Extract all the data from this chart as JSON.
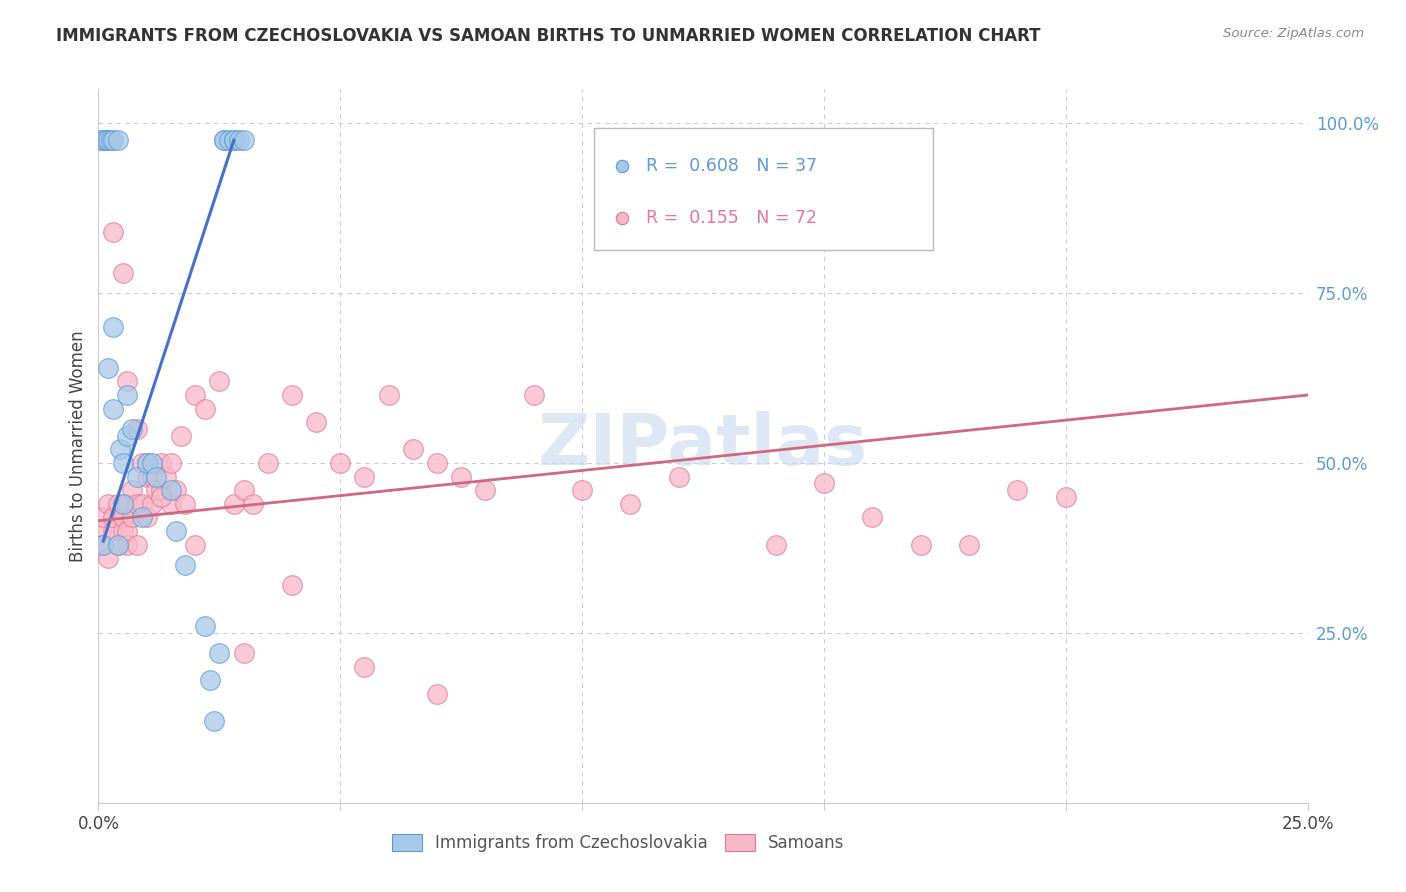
{
  "title": "IMMIGRANTS FROM CZECHOSLOVAKIA VS SAMOAN BIRTHS TO UNMARRIED WOMEN CORRELATION CHART",
  "source": "Source: ZipAtlas.com",
  "ylabel_left": "Births to Unmarried Women",
  "x_min": 0.0,
  "x_max": 0.25,
  "y_min": 0.0,
  "y_max": 1.05,
  "x_tick_positions": [
    0.0,
    0.05,
    0.1,
    0.15,
    0.2,
    0.25
  ],
  "x_tick_labels": [
    "0.0%",
    "",
    "",
    "",
    "",
    "25.0%"
  ],
  "y_ticks_right": [
    0.25,
    0.5,
    0.75,
    1.0
  ],
  "y_tick_labels_right": [
    "25.0%",
    "50.0%",
    "75.0%",
    "100.0%"
  ],
  "blue_color": "#a8c8e8",
  "blue_edge_color": "#5b9bd5",
  "pink_color": "#f8b8c8",
  "pink_edge_color": "#e07898",
  "blue_line_color": "#4472c4",
  "pink_line_color": "#d06880",
  "watermark": "ZIPatlas",
  "watermark_color": "#c8d8ee",
  "legend_blue_text_color": "#5b9bd5",
  "legend_pink_text_color": "#e07898",
  "blue_N": 37,
  "pink_N": 72,
  "blue_R": "0.608",
  "pink_R": "0.155",
  "blue_scatter_x": [
    0.0005,
    0.001,
    0.001,
    0.0015,
    0.002,
    0.002,
    0.0025,
    0.003,
    0.003,
    0.003,
    0.004,
    0.004,
    0.0045,
    0.005,
    0.005,
    0.006,
    0.006,
    0.007,
    0.008,
    0.009,
    0.01,
    0.011,
    0.012,
    0.015,
    0.016,
    0.018,
    0.022,
    0.023,
    0.024,
    0.025,
    0.026,
    0.026,
    0.027,
    0.028,
    0.028,
    0.029,
    0.03
  ],
  "blue_scatter_y": [
    0.975,
    0.975,
    0.38,
    0.975,
    0.975,
    0.64,
    0.975,
    0.975,
    0.58,
    0.7,
    0.975,
    0.38,
    0.52,
    0.5,
    0.44,
    0.6,
    0.54,
    0.55,
    0.48,
    0.42,
    0.5,
    0.5,
    0.48,
    0.46,
    0.4,
    0.35,
    0.26,
    0.18,
    0.12,
    0.22,
    0.975,
    0.975,
    0.975,
    0.975,
    0.975,
    0.975,
    0.975
  ],
  "pink_scatter_x": [
    0.0005,
    0.001,
    0.001,
    0.0015,
    0.002,
    0.002,
    0.003,
    0.003,
    0.004,
    0.004,
    0.005,
    0.005,
    0.006,
    0.006,
    0.006,
    0.007,
    0.007,
    0.008,
    0.008,
    0.009,
    0.009,
    0.01,
    0.01,
    0.011,
    0.011,
    0.012,
    0.013,
    0.013,
    0.014,
    0.015,
    0.015,
    0.016,
    0.017,
    0.018,
    0.02,
    0.022,
    0.025,
    0.028,
    0.03,
    0.032,
    0.035,
    0.04,
    0.045,
    0.05,
    0.055,
    0.06,
    0.065,
    0.07,
    0.075,
    0.08,
    0.09,
    0.1,
    0.11,
    0.12,
    0.14,
    0.15,
    0.16,
    0.17,
    0.18,
    0.19,
    0.003,
    0.005,
    0.006,
    0.008,
    0.01,
    0.013,
    0.02,
    0.03,
    0.04,
    0.055,
    0.07,
    0.2
  ],
  "pink_scatter_y": [
    0.4,
    0.42,
    0.38,
    0.975,
    0.36,
    0.44,
    0.4,
    0.42,
    0.38,
    0.44,
    0.4,
    0.42,
    0.44,
    0.38,
    0.4,
    0.46,
    0.42,
    0.44,
    0.38,
    0.5,
    0.44,
    0.48,
    0.42,
    0.48,
    0.44,
    0.46,
    0.5,
    0.46,
    0.48,
    0.5,
    0.44,
    0.46,
    0.54,
    0.44,
    0.6,
    0.58,
    0.62,
    0.44,
    0.46,
    0.44,
    0.5,
    0.6,
    0.56,
    0.5,
    0.48,
    0.6,
    0.52,
    0.5,
    0.48,
    0.46,
    0.6,
    0.46,
    0.44,
    0.48,
    0.38,
    0.47,
    0.42,
    0.38,
    0.38,
    0.46,
    0.84,
    0.78,
    0.62,
    0.55,
    0.5,
    0.45,
    0.38,
    0.22,
    0.32,
    0.2,
    0.16,
    0.45
  ],
  "blue_line_x": [
    0.001,
    0.028
  ],
  "blue_line_y": [
    0.385,
    0.975
  ],
  "pink_line_x": [
    0.0,
    0.25
  ],
  "pink_line_y": [
    0.415,
    0.6
  ]
}
